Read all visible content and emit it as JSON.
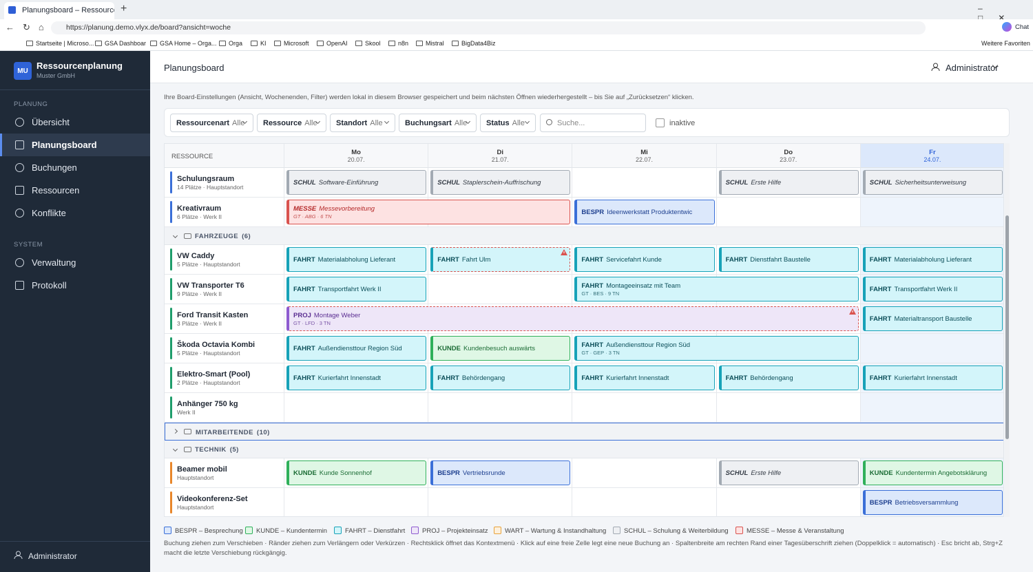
{
  "browser": {
    "tab_title": "Planungsboard – Ressourcenplanu",
    "url": "https://planung.demo.vlyx.de/board?ansicht=woche",
    "chat": "Chat",
    "bookmarks": [
      "Startseite | Microso...",
      "GSA Dashboar",
      "GSA Home – Orga...",
      "Orga",
      "KI",
      "Microsoft",
      "OpenAI",
      "Skool",
      "n8n",
      "Mistral",
      "BigData4Biz"
    ],
    "more_favorites": "Weitere Favoriten"
  },
  "sidebar": {
    "logo": "MU",
    "app_name": "Ressourcenplanung",
    "company": "Muster GmbH",
    "sections": [
      {
        "title": "PLANUNG",
        "items": [
          "Übersicht",
          "Planungsboard",
          "Buchungen",
          "Ressourcen",
          "Konflikte"
        ]
      },
      {
        "title": "SYSTEM",
        "items": [
          "Verwaltung",
          "Protokoll"
        ]
      }
    ],
    "user": "Administrator"
  },
  "header": {
    "title": "Planungsboard",
    "user": "Administrator"
  },
  "info": "Ihre Board-Einstellungen (Ansicht, Wochenenden, Filter) werden lokal in diesem Browser gespeichert und beim nächsten Öffnen wiederhergestellt – bis Sie auf „Zurücksetzen“ klicken.",
  "filters": [
    {
      "label": "Ressourcenart",
      "value": "Alle"
    },
    {
      "label": "Ressource",
      "value": "Alle"
    },
    {
      "label": "Standort",
      "value": "Alle"
    },
    {
      "label": "Buchungsart",
      "value": "Alle"
    },
    {
      "label": "Status",
      "value": "Alle"
    }
  ],
  "search_placeholder": "Suche...",
  "inactive_label": "inaktive",
  "board": {
    "resource_header": "RESSOURCE",
    "today_index": 4,
    "days": [
      {
        "day": "Mo",
        "date": "20.07."
      },
      {
        "day": "Di",
        "date": "21.07."
      },
      {
        "day": "Mi",
        "date": "22.07."
      },
      {
        "day": "Do",
        "date": "23.07."
      },
      {
        "day": "Fr",
        "date": "24.07."
      }
    ],
    "groups": [
      {
        "rows": [
          {
            "name": "Schulungsraum",
            "sub": "14 Plätze · Hauptstandort",
            "accent": "#3a6fd8",
            "bookings": [
              {
                "day": 0,
                "span": 1,
                "legend": 5,
                "code": "SCHUL",
                "title": "Software-Einführung"
              },
              {
                "day": 1,
                "span": 1,
                "legend": 5,
                "code": "SCHUL",
                "title": "Staplerschein-Auffrischung"
              },
              {
                "day": 3,
                "span": 1,
                "legend": 5,
                "code": "SCHUL",
                "title": "Erste Hilfe"
              },
              {
                "day": 4,
                "span": 1,
                "legend": 5,
                "code": "SCHUL",
                "title": "Sicherheitsunterweisung"
              }
            ]
          },
          {
            "name": "Kreativraum",
            "sub": "6 Plätze · Werk II",
            "accent": "#3a6fd8",
            "bookings": [
              {
                "day": 0,
                "span": 2,
                "legend": 6,
                "code": "MESSE",
                "title": "Messevorbereitung",
                "sub": "GT · ABG · 6 TN"
              },
              {
                "day": 2,
                "span": 1,
                "legend": 0,
                "code": "BESPR",
                "title": "Ideenwerkstatt Produktentwic"
              }
            ]
          }
        ]
      },
      {
        "name": "FAHRZEUGE",
        "count": "(6)",
        "rows": [
          {
            "name": "VW Caddy",
            "sub": "5 Plätze · Hauptstandort",
            "accent": "#1f9d6b",
            "bookings": [
              {
                "day": 0,
                "span": 1,
                "legend": 2,
                "code": "FAHRT",
                "title": "Materialabholung Lieferant"
              },
              {
                "day": 1,
                "span": 1,
                "legend": 2,
                "code": "FAHRT",
                "title": "Fahrt Ulm",
                "warning": true
              },
              {
                "day": 2,
                "span": 1,
                "legend": 2,
                "code": "FAHRT",
                "title": "Servicefahrt Kunde"
              },
              {
                "day": 3,
                "span": 1,
                "legend": 2,
                "code": "FAHRT",
                "title": "Dienstfahrt Baustelle"
              },
              {
                "day": 4,
                "span": 1,
                "legend": 2,
                "code": "FAHRT",
                "title": "Materialabholung Lieferant"
              }
            ]
          },
          {
            "name": "VW Transporter T6",
            "sub": "9 Plätze · Werk II",
            "accent": "#1f9d6b",
            "bookings": [
              {
                "day": 0,
                "span": 1,
                "legend": 2,
                "code": "FAHRT",
                "title": "Transportfahrt Werk II"
              },
              {
                "day": 2,
                "span": 2,
                "legend": 2,
                "code": "FAHRT",
                "title": "Montageeinsatz mit Team",
                "sub": "GT · BES · 9 TN"
              },
              {
                "day": 4,
                "span": 1,
                "legend": 2,
                "code": "FAHRT",
                "title": "Transportfahrt Werk II"
              }
            ]
          },
          {
            "name": "Ford Transit Kasten",
            "sub": "3 Plätze · Werk II",
            "accent": "#1f9d6b",
            "bookings": [
              {
                "day": 0,
                "span": 4,
                "legend": 3,
                "code": "PROJ",
                "title": "Montage Weber",
                "sub": "GT · LFD · 3 TN",
                "warning": true
              },
              {
                "day": 4,
                "span": 1,
                "legend": 2,
                "code": "FAHRT",
                "title": "Materialtransport Baustelle"
              }
            ]
          },
          {
            "name": "Škoda Octavia Kombi",
            "sub": "5 Plätze · Hauptstandort",
            "accent": "#1f9d6b",
            "bookings": [
              {
                "day": 0,
                "span": 1,
                "legend": 2,
                "code": "FAHRT",
                "title": "Außendiensttour Region Süd"
              },
              {
                "day": 1,
                "span": 1,
                "legend": 1,
                "code": "KUNDE",
                "title": "Kundenbesuch auswärts"
              },
              {
                "day": 2,
                "span": 2,
                "legend": 2,
                "code": "FAHRT",
                "title": "Außendiensttour Region Süd",
                "sub": "GT · GEP · 3 TN"
              }
            ]
          },
          {
            "name": "Elektro-Smart (Pool)",
            "sub": "2 Plätze · Hauptstandort",
            "accent": "#1f9d6b",
            "bookings": [
              {
                "day": 0,
                "span": 1,
                "legend": 2,
                "code": "FAHRT",
                "title": "Kurierfahrt Innenstadt"
              },
              {
                "day": 1,
                "span": 1,
                "legend": 2,
                "code": "FAHRT",
                "title": "Behördengang"
              },
              {
                "day": 2,
                "span": 1,
                "legend": 2,
                "code": "FAHRT",
                "title": "Kurierfahrt Innenstadt"
              },
              {
                "day": 3,
                "span": 1,
                "legend": 2,
                "code": "FAHRT",
                "title": "Behördengang"
              },
              {
                "day": 4,
                "span": 1,
                "legend": 2,
                "code": "FAHRT",
                "title": "Kurierfahrt Innenstadt"
              }
            ]
          },
          {
            "name": "Anhänger 750 kg",
            "sub": "Werk II",
            "accent": "#1f9d6b",
            "bookings": []
          }
        ]
      },
      {
        "name": "MITARBEITENDE",
        "count": "(10)",
        "collapsed": true,
        "selected": true,
        "rows": []
      },
      {
        "name": "TECHNIK",
        "count": "(5)",
        "rows": [
          {
            "name": "Beamer mobil",
            "sub": "Hauptstandort",
            "accent": "#e8862a",
            "bookings": [
              {
                "day": 0,
                "span": 1,
                "legend": 1,
                "code": "KUNDE",
                "title": "Kunde Sonnenhof"
              },
              {
                "day": 1,
                "span": 1,
                "legend": 0,
                "code": "BESPR",
                "title": "Vertriebsrunde"
              },
              {
                "day": 3,
                "span": 1,
                "legend": 5,
                "code": "SCHUL",
                "title": "Erste Hilfe"
              },
              {
                "day": 4,
                "span": 1,
                "legend": 1,
                "code": "KUNDE",
                "title": "Kundentermin Angebotsklärung"
              }
            ]
          },
          {
            "name": "Videokonferenz-Set",
            "sub": "Hauptstandort",
            "accent": "#e8862a",
            "bookings": [
              {
                "day": 4,
                "span": 1,
                "legend": 0,
                "code": "BESPR",
                "title": "Betriebsversammlung"
              }
            ]
          }
        ]
      }
    ]
  },
  "legend": [
    {
      "label": "BESPR – Besprechung",
      "color": "#3a6fd8",
      "fill": "#dce8fb",
      "text": "#1d3f8f"
    },
    {
      "label": "KUNDE – Kundentermin",
      "color": "#2fb05a",
      "fill": "#dff7e5",
      "text": "#1a6b34"
    },
    {
      "label": "FAHRT – Dienstfahrt",
      "color": "#17a2b8",
      "fill": "#d3f5fa",
      "text": "#0c4f5a"
    },
    {
      "label": "PROJ – Projekteinsatz",
      "color": "#8e5bd0",
      "fill": "#eee6f8",
      "text": "#5a2d91"
    },
    {
      "label": "WART – Wartung & Instandhaltung",
      "color": "#e8a23a",
      "fill": "#fdf0dc",
      "text": "#8a5a10"
    },
    {
      "label": "SCHUL – Schulung & Weiterbildung",
      "color": "#a2aab3",
      "fill": "#eef0f3",
      "text": "#333a44",
      "italic": true
    },
    {
      "label": "MESSE – Messe & Veranstaltung",
      "color": "#d9534f",
      "fill": "#fde2e2",
      "text": "#b52a2a",
      "italic": true
    }
  ],
  "help": "Buchung ziehen zum Verschieben · Ränder ziehen zum Verlängern oder Verkürzen · Rechtsklick öffnet das Kontextmenü · Klick auf eine freie Zelle legt eine neue Buchung an · Spaltenbreite am rechten Rand einer Tagesüberschrift ziehen (Doppelklick = automatisch) · Esc bricht ab, Strg+Z macht die letzte Verschiebung rückgängig."
}
